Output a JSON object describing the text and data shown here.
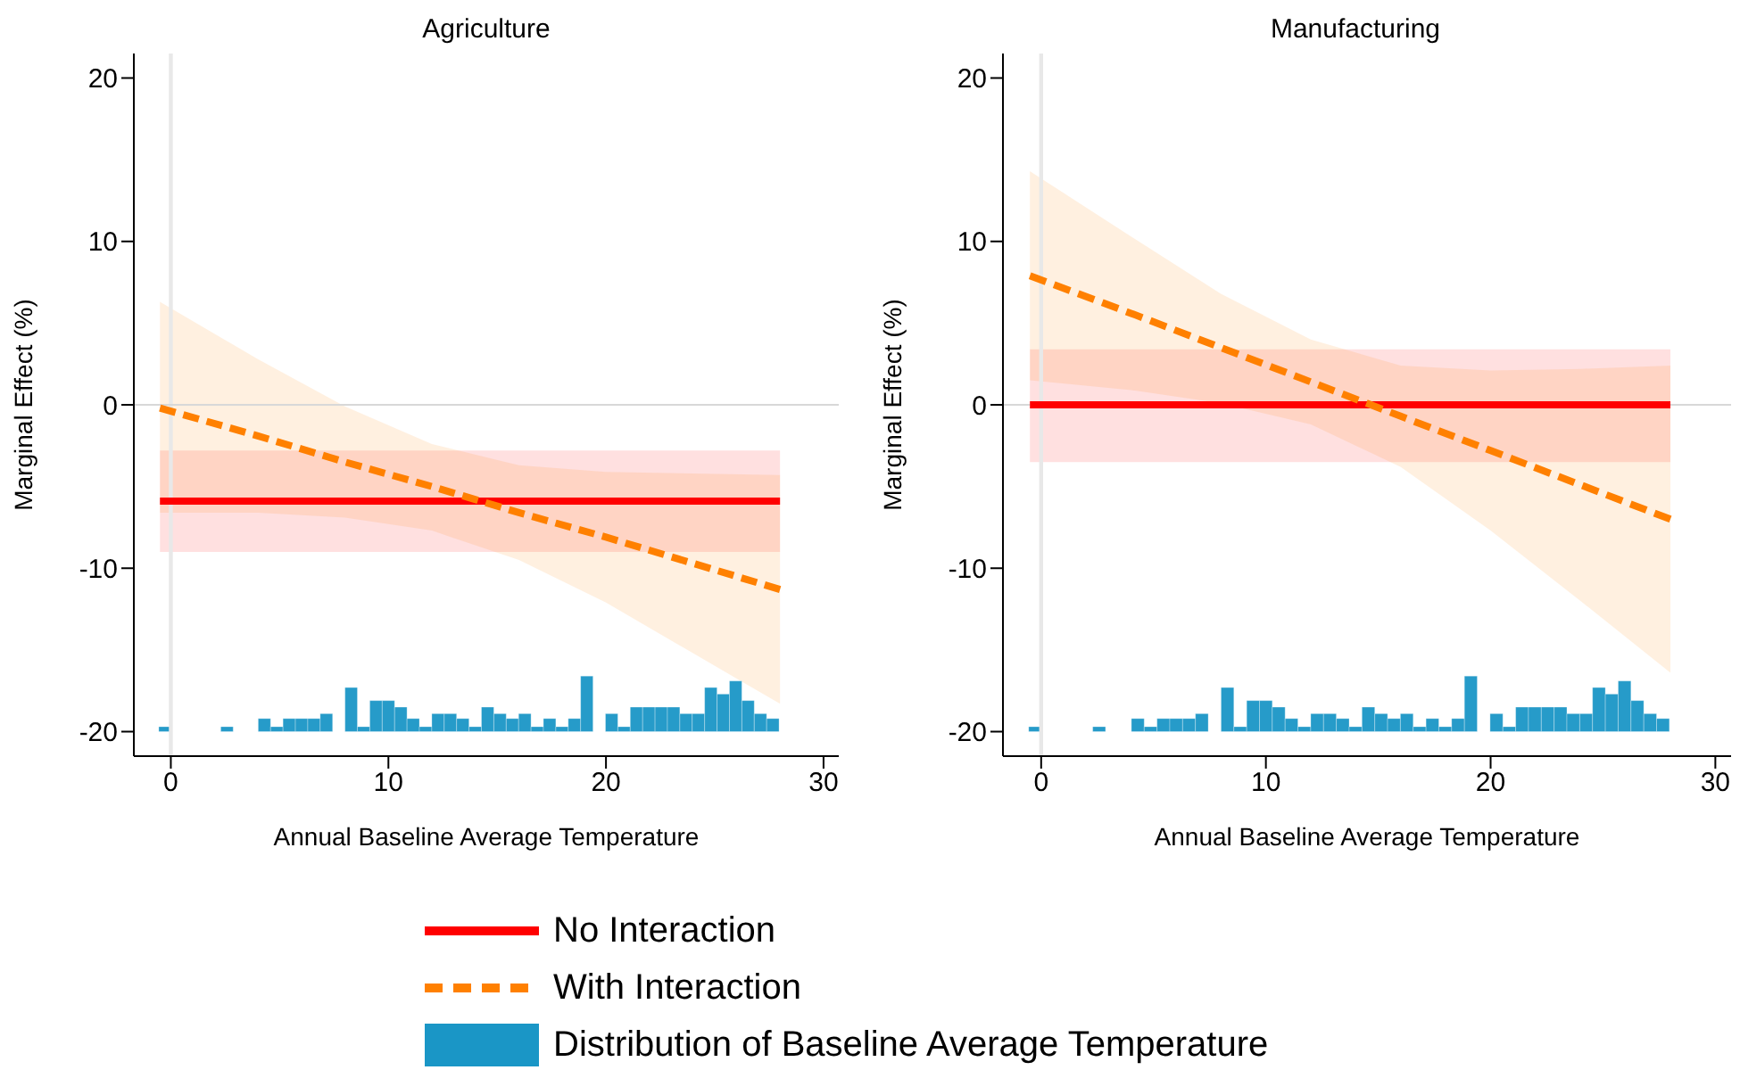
{
  "chart_data": [
    {
      "type": "line",
      "title": "Agriculture",
      "xlabel": "Annual Baseline Average Temperature",
      "ylabel": "Marginal Effect (%)",
      "xlim": [
        -1.7,
        30.7
      ],
      "xticks": [
        0,
        10,
        20,
        30
      ],
      "ylim": [
        -21.5,
        21.5
      ],
      "yticks": [
        -20,
        -10,
        0,
        10,
        20
      ],
      "legend": "bottom",
      "ref_lines": [
        {
          "axis": "x",
          "value": 0,
          "color": "#e8e8e8"
        },
        {
          "axis": "y",
          "value": 0,
          "color": "#d8d8d8"
        }
      ],
      "series": [
        {
          "name": "No Interaction",
          "color": "#ff0000",
          "x": [
            -0.5,
            28
          ],
          "values": [
            -5.9,
            -5.9
          ],
          "lower": [
            -9.0,
            -9.0
          ],
          "upper": [
            -2.8,
            -2.8
          ]
        },
        {
          "name": "With Interaction",
          "color": "#ff8000",
          "line_style": "dashed",
          "x": [
            -0.5,
            4,
            8,
            12,
            16,
            20,
            24,
            28
          ],
          "values": [
            -0.2,
            -1.9,
            -3.5,
            -5.0,
            -6.6,
            -8.1,
            -9.7,
            -11.3
          ],
          "lower": [
            -6.6,
            -6.6,
            -6.9,
            -7.7,
            -9.5,
            -12.1,
            -15.2,
            -18.3
          ],
          "upper": [
            6.3,
            2.8,
            -0.1,
            -2.4,
            -3.7,
            -4.1,
            -4.2,
            -4.3
          ]
        },
        {
          "type": "bar",
          "name": "Distribution of Baseline Average Temperature",
          "color": "#1a96c6",
          "x": [
            -0.27,
            2.58,
            4.3,
            4.87,
            5.44,
            6.01,
            6.58,
            7.15,
            8.29,
            8.86,
            9.43,
            10.0,
            10.57,
            11.14,
            11.71,
            12.28,
            12.85,
            13.42,
            13.99,
            14.56,
            15.13,
            15.7,
            16.27,
            16.84,
            17.41,
            17.98,
            18.55,
            19.12,
            20.26,
            20.83,
            21.4,
            21.97,
            22.54,
            23.11,
            23.68,
            24.25,
            24.82,
            25.39,
            25.96,
            26.53,
            27.1,
            27.67
          ],
          "values": [
            0.3,
            0.3,
            0.8,
            0.3,
            0.8,
            0.8,
            0.8,
            1.1,
            2.7,
            0.3,
            1.9,
            1.9,
            1.5,
            0.8,
            0.3,
            1.1,
            1.1,
            0.8,
            0.3,
            1.5,
            1.1,
            0.8,
            1.1,
            0.3,
            0.8,
            0.3,
            0.8,
            3.4,
            1.1,
            0.3,
            1.5,
            1.5,
            1.5,
            1.5,
            1.1,
            1.1,
            2.7,
            2.3,
            3.1,
            1.9,
            1.1,
            0.8
          ],
          "base": [
            -20,
            -20,
            -20,
            -20,
            -20,
            -20,
            -20,
            -20,
            -20,
            -20,
            -20,
            -20,
            -20,
            -20,
            -20,
            -20,
            -20,
            -20,
            -20,
            -20,
            -20,
            -20,
            -20,
            -20,
            -20,
            -20,
            -20,
            -20,
            -20,
            -20,
            -20,
            -20,
            -20,
            -20,
            -20,
            -20,
            -20,
            -20,
            -20,
            -20,
            -20,
            -20
          ]
        }
      ]
    },
    {
      "type": "line",
      "title": "Manufacturing",
      "xlabel": "Annual Baseline Average Temperature",
      "ylabel": "Marginal Effect (%)",
      "xlim": [
        -1.7,
        30.7
      ],
      "xticks": [
        0,
        10,
        20,
        30
      ],
      "ylim": [
        -21.5,
        21.5
      ],
      "yticks": [
        -20,
        -10,
        0,
        10,
        20
      ],
      "ref_lines": [
        {
          "axis": "x",
          "value": 0,
          "color": "#e8e8e8"
        },
        {
          "axis": "y",
          "value": 0,
          "color": "#d8d8d8"
        }
      ],
      "series": [
        {
          "color": "#ff0000",
          "x": [
            -0.5,
            28
          ],
          "values": [
            0,
            0
          ],
          "lower": [
            -3.5,
            -3.5
          ],
          "upper": [
            3.4,
            3.4
          ]
        },
        {
          "color": "#ff8000",
          "line_style": "dashed",
          "x": [
            -0.5,
            4,
            8,
            12,
            16,
            20,
            24,
            28
          ],
          "values": [
            7.9,
            5.6,
            3.5,
            1.4,
            -0.7,
            -2.8,
            -4.9,
            -7.0
          ],
          "lower": [
            1.5,
            0.9,
            0.1,
            -1.2,
            -3.8,
            -7.7,
            -12.0,
            -16.4
          ],
          "upper": [
            14.3,
            10.3,
            6.8,
            4.0,
            2.4,
            2.1,
            2.2,
            2.4
          ]
        },
        {
          "type": "bar",
          "color": "#1a96c6",
          "x": [
            -0.27,
            2.58,
            4.3,
            4.87,
            5.44,
            6.01,
            6.58,
            7.15,
            8.29,
            8.86,
            9.43,
            10.0,
            10.57,
            11.14,
            11.71,
            12.28,
            12.85,
            13.42,
            13.99,
            14.56,
            15.13,
            15.7,
            16.27,
            16.84,
            17.41,
            17.98,
            18.55,
            19.12,
            20.26,
            20.83,
            21.4,
            21.97,
            22.54,
            23.11,
            23.68,
            24.25,
            24.82,
            25.39,
            25.96,
            26.53,
            27.1,
            27.67
          ],
          "values": [
            0.3,
            0.3,
            0.8,
            0.3,
            0.8,
            0.8,
            0.8,
            1.1,
            2.7,
            0.3,
            1.9,
            1.9,
            1.5,
            0.8,
            0.3,
            1.1,
            1.1,
            0.8,
            0.3,
            1.5,
            1.1,
            0.8,
            1.1,
            0.3,
            0.8,
            0.3,
            0.8,
            3.4,
            1.1,
            0.3,
            1.5,
            1.5,
            1.5,
            1.5,
            1.1,
            1.1,
            2.7,
            2.3,
            3.1,
            1.9,
            1.1,
            0.8
          ],
          "base": [
            -20,
            -20,
            -20,
            -20,
            -20,
            -20,
            -20,
            -20,
            -20,
            -20,
            -20,
            -20,
            -20,
            -20,
            -20,
            -20,
            -20,
            -20,
            -20,
            -20,
            -20,
            -20,
            -20,
            -20,
            -20,
            -20,
            -20,
            -20,
            -20,
            -20,
            -20,
            -20,
            -20,
            -20,
            -20,
            -20,
            -20,
            -20,
            -20,
            -20,
            -20,
            -20
          ]
        }
      ]
    }
  ]
}
